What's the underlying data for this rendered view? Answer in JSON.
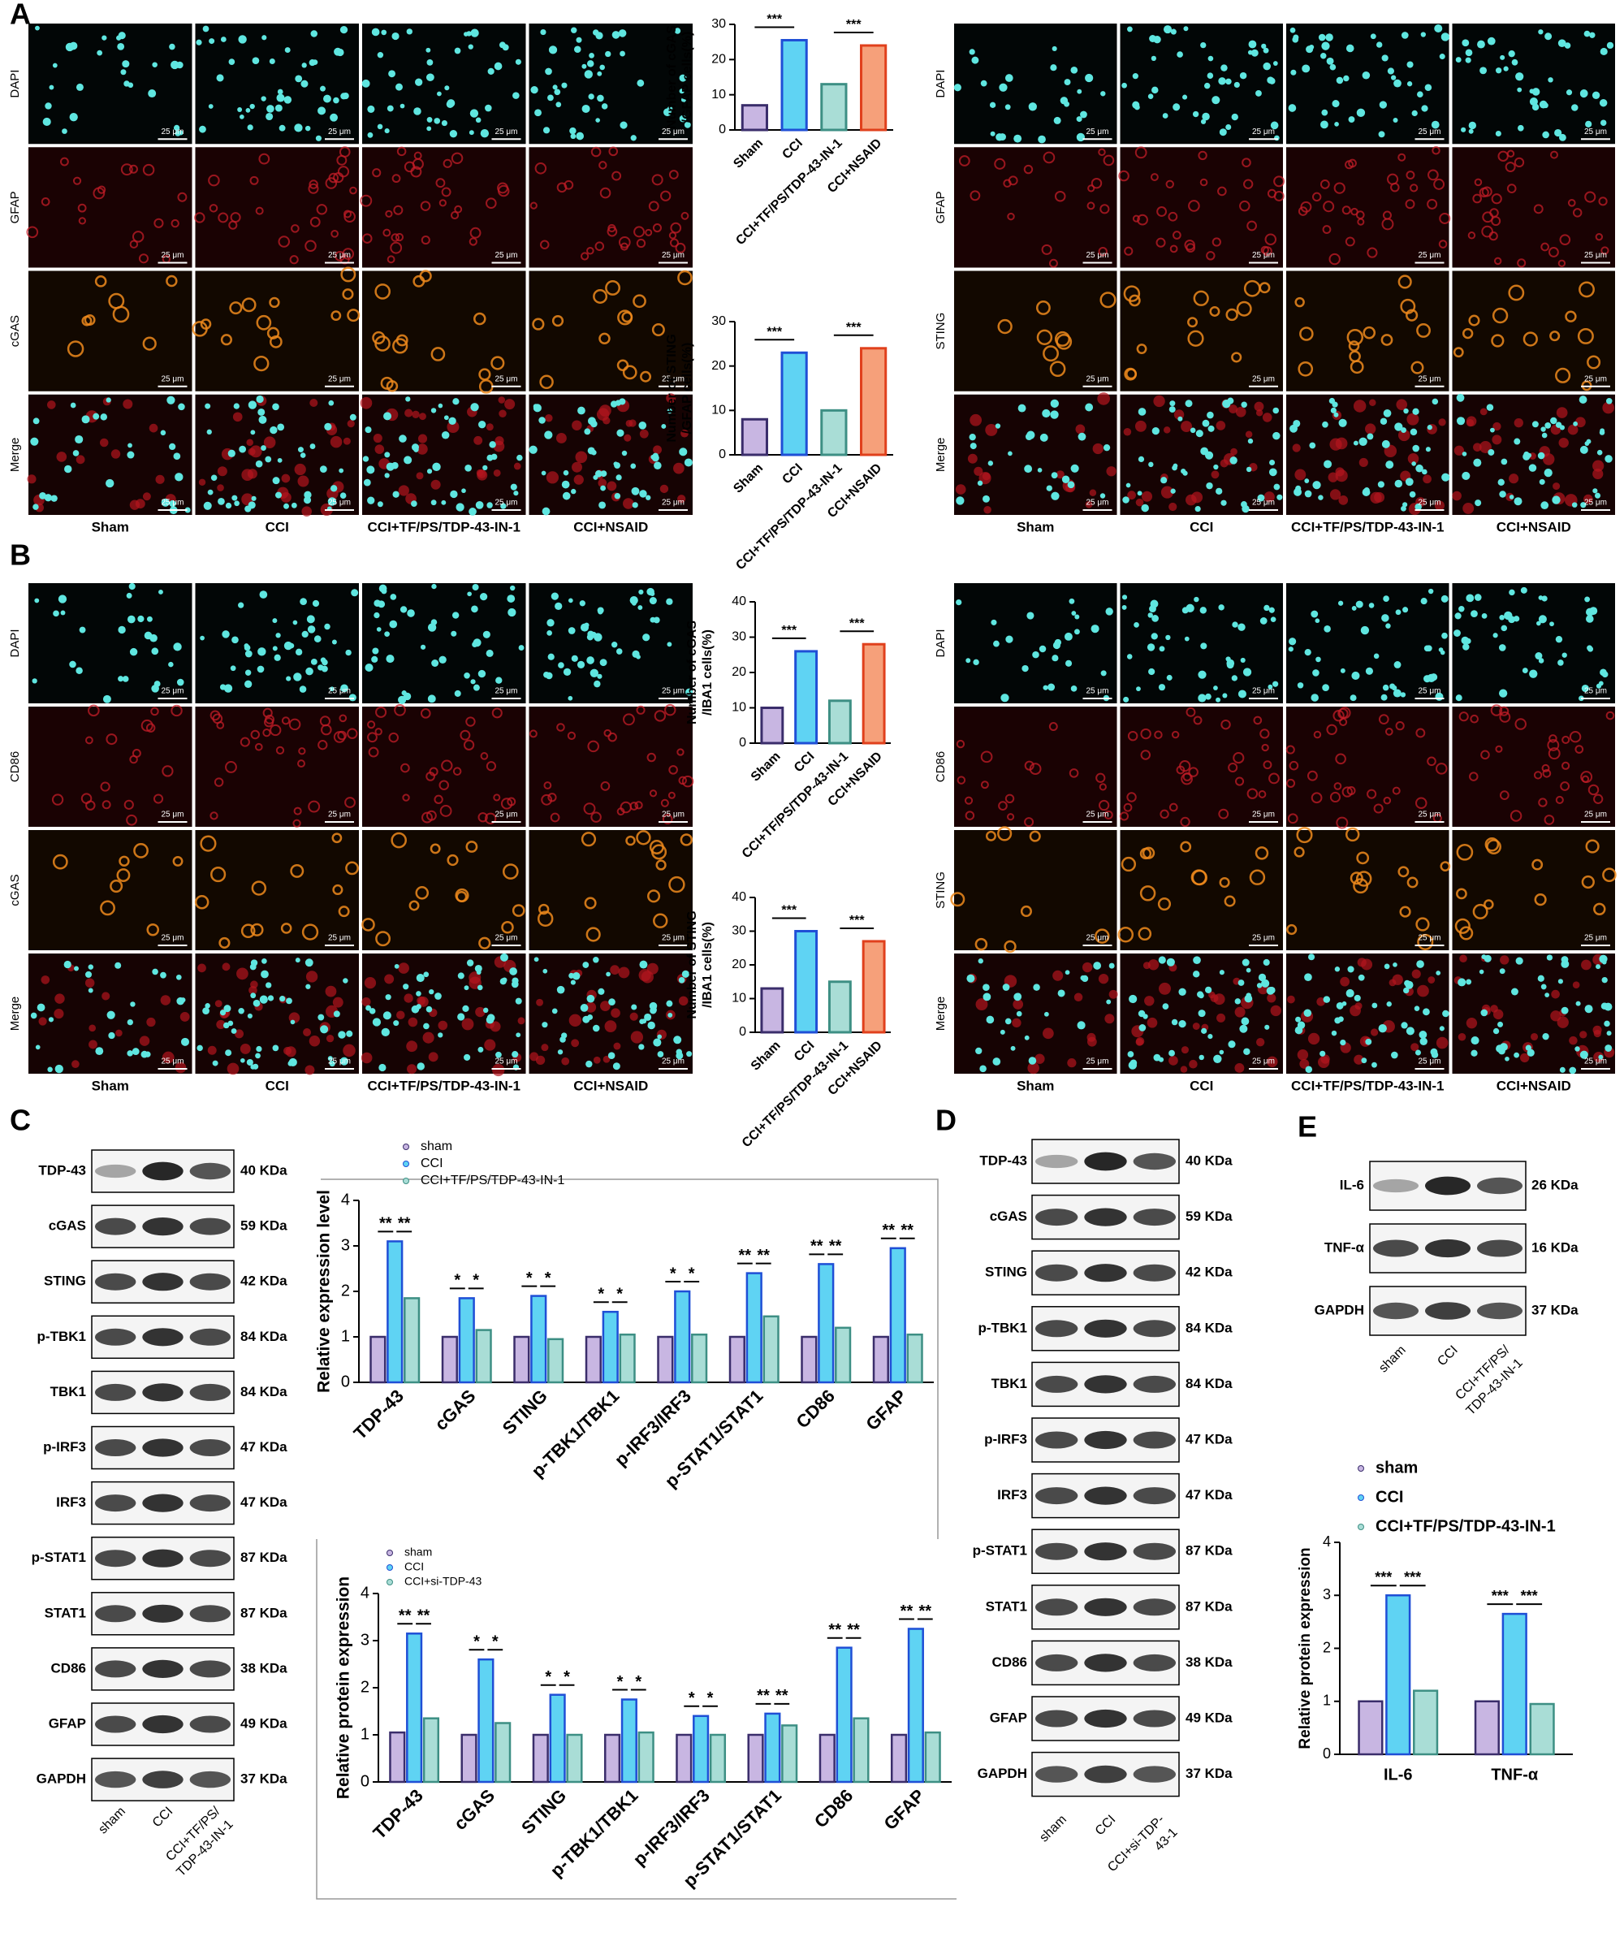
{
  "panel_letters": [
    "A",
    "B",
    "C",
    "D",
    "E"
  ],
  "micrographs": {
    "scale_bar": "25 μm",
    "A_left": {
      "rows": [
        "DAPI",
        "GFAP",
        "cGAS",
        "Merge"
      ],
      "columns": [
        "Sham",
        "CCI",
        "CCI+TF/PS/TDP-43-IN-1",
        "CCI+NSAID"
      ]
    },
    "A_right": {
      "rows": [
        "DAPI",
        "GFAP",
        "STING",
        "Merge"
      ],
      "columns": [
        "Sham",
        "CCI",
        "CCI+TF/PS/TDP-43-IN-1",
        "CCI+NSAID"
      ]
    },
    "B_left": {
      "rows": [
        "DAPI",
        "CD86",
        "cGAS",
        "Merge"
      ],
      "columns": [
        "Sham",
        "CCI",
        "CCI+TF/PS/TDP-43-IN-1",
        "CCI+NSAID"
      ]
    },
    "B_right": {
      "rows": [
        "DAPI",
        "CD86",
        "STING",
        "Merge"
      ],
      "columns": [
        "Sham",
        "CCI",
        "CCI+TF/PS/TDP-43-IN-1",
        "CCI+NSAID"
      ]
    }
  },
  "blots": {
    "C": {
      "rows": [
        {
          "label": "TDP-43",
          "size": "40 KDa"
        },
        {
          "label": "cGAS",
          "size": "59 KDa"
        },
        {
          "label": "STING",
          "size": "42 KDa"
        },
        {
          "label": "p-TBK1",
          "size": "84 KDa"
        },
        {
          "label": "TBK1",
          "size": "84 KDa"
        },
        {
          "label": "p-IRF3",
          "size": "47 KDa"
        },
        {
          "label": "IRF3",
          "size": "47 KDa"
        },
        {
          "label": "p-STAT1",
          "size": "87 KDa"
        },
        {
          "label": "STAT1",
          "size": "87 KDa"
        },
        {
          "label": "CD86",
          "size": "38 KDa"
        },
        {
          "label": "GFAP",
          "size": "49 KDa"
        },
        {
          "label": "GAPDH",
          "size": "37 KDa"
        }
      ],
      "lanes": [
        [
          "sham"
        ],
        [
          "CCI"
        ],
        [
          "CCI+TF/PS/",
          "TDP-43-IN-1"
        ]
      ]
    },
    "D": {
      "rows": [
        {
          "label": "TDP-43",
          "size": "40 KDa"
        },
        {
          "label": "cGAS",
          "size": "59 KDa"
        },
        {
          "label": "STING",
          "size": "42 KDa"
        },
        {
          "label": "p-TBK1",
          "size": "84 KDa"
        },
        {
          "label": "TBK1",
          "size": "84 KDa"
        },
        {
          "label": "p-IRF3",
          "size": "47 KDa"
        },
        {
          "label": "IRF3",
          "size": "47 KDa"
        },
        {
          "label": "p-STAT1",
          "size": "87 KDa"
        },
        {
          "label": "STAT1",
          "size": "87 KDa"
        },
        {
          "label": "CD86",
          "size": "38 KDa"
        },
        {
          "label": "GFAP",
          "size": "49 KDa"
        },
        {
          "label": "GAPDH",
          "size": "37 KDa"
        }
      ],
      "lanes": [
        [
          "sham"
        ],
        [
          "CCI"
        ],
        [
          "CCI+si-TDP-",
          "43-1"
        ]
      ]
    },
    "E": {
      "rows": [
        {
          "label": "IL-6",
          "size": "26 KDa"
        },
        {
          "label": "TNF-α",
          "size": "16 KDa"
        },
        {
          "label": "GAPDH",
          "size": "37 KDa"
        }
      ],
      "lanes": [
        [
          "sham"
        ],
        [
          "CCI"
        ],
        [
          "CCI+TF/PS/",
          "TDP-43-IN-1"
        ]
      ]
    }
  },
  "chart_data": [
    {
      "type": "bar",
      "ylabel": [
        "Number of cGAS",
        "/GFAP cells(%)"
      ],
      "categories": [
        "Sham",
        "CCI",
        "CCI+TF/PS/TDP-43-IN-1",
        "CCI+NSAID"
      ],
      "values": [
        7,
        25.5,
        13,
        24
      ],
      "colors": [
        "#c8b6e2",
        "#5fd3f3",
        "#a9ddd6",
        "#f6a07a"
      ],
      "edge_colors": [
        "#3a2d6b",
        "#1f4fd6",
        "#3d8f84",
        "#e0401c"
      ],
      "ylim": [
        0,
        30
      ],
      "yticks": [
        0,
        10,
        20,
        30
      ],
      "significance": [
        "***",
        "***"
      ]
    },
    {
      "type": "bar",
      "ylabel": [
        "Number of STING",
        "/GFAP cells(%)"
      ],
      "categories": [
        "Sham",
        "CCI",
        "CCI+TF/PS/TDP-43-IN-1",
        "CCI+NSAID"
      ],
      "values": [
        8,
        23,
        10,
        24
      ],
      "colors": [
        "#c8b6e2",
        "#5fd3f3",
        "#a9ddd6",
        "#f6a07a"
      ],
      "edge_colors": [
        "#3a2d6b",
        "#1f4fd6",
        "#3d8f84",
        "#e0401c"
      ],
      "ylim": [
        0,
        30
      ],
      "yticks": [
        0,
        10,
        20,
        30
      ],
      "significance": [
        "***",
        "***"
      ]
    },
    {
      "type": "bar",
      "ylabel": [
        "Number of cGAS",
        "/IBA1 cells(%)"
      ],
      "categories": [
        "Sham",
        "CCI",
        "CCI+TF/PS/TDP-43-IN-1",
        "CCI+NSAID"
      ],
      "values": [
        10,
        26,
        12,
        28
      ],
      "colors": [
        "#c8b6e2",
        "#5fd3f3",
        "#a9ddd6",
        "#f6a07a"
      ],
      "edge_colors": [
        "#3a2d6b",
        "#1f4fd6",
        "#3d8f84",
        "#e0401c"
      ],
      "ylim": [
        0,
        40
      ],
      "yticks": [
        0,
        10,
        20,
        30,
        40
      ],
      "significance": [
        "***",
        "***"
      ]
    },
    {
      "type": "bar",
      "ylabel": [
        "Number of STING",
        "/IBA1 cells(%)"
      ],
      "categories": [
        "Sham",
        "CCI",
        "CCI+TF/PS/TDP-43-IN-1",
        "CCI+NSAID"
      ],
      "values": [
        13,
        30,
        15,
        27
      ],
      "colors": [
        "#c8b6e2",
        "#5fd3f3",
        "#a9ddd6",
        "#f6a07a"
      ],
      "edge_colors": [
        "#3a2d6b",
        "#1f4fd6",
        "#3d8f84",
        "#e0401c"
      ],
      "ylim": [
        0,
        40
      ],
      "yticks": [
        0,
        10,
        20,
        30,
        40
      ],
      "significance": [
        "***",
        "***"
      ]
    },
    {
      "type": "grouped_bar",
      "ylabel": "Relative expression level",
      "categories": [
        "TDP-43",
        "cGAS",
        "STING",
        "p-TBK1/TBK1",
        "p-IRF3/IRF3",
        "p-STAT1/STAT1",
        "CD86",
        "GFAP"
      ],
      "series": [
        {
          "name": "sham",
          "color": "#c8b6e2",
          "edge_color": "#3a2d6b",
          "values": [
            1,
            1,
            1,
            1,
            1,
            1,
            1,
            1
          ]
        },
        {
          "name": "CCI",
          "color": "#5fd3f3",
          "edge_color": "#1f4fd6",
          "values": [
            3.1,
            1.85,
            1.9,
            1.55,
            2.0,
            2.4,
            2.6,
            2.95
          ]
        },
        {
          "name": "CCI+TF/PS/TDP-43-IN-1",
          "color": "#a9ddd6",
          "edge_color": "#3d8f84",
          "values": [
            1.85,
            1.15,
            0.95,
            1.05,
            1.05,
            1.45,
            1.2,
            1.05
          ]
        }
      ],
      "ylim": [
        0,
        4
      ],
      "yticks": [
        0,
        1,
        2,
        3,
        4
      ],
      "significance": [
        [
          "**",
          "**"
        ],
        [
          "*",
          "*"
        ],
        [
          "*",
          "*"
        ],
        [
          "*",
          "*"
        ],
        [
          "*",
          "*"
        ],
        [
          "**",
          "**"
        ],
        [
          "**",
          "**"
        ],
        [
          "**",
          "**"
        ]
      ]
    },
    {
      "type": "grouped_bar",
      "ylabel": "Relative protein expression",
      "categories": [
        "TDP-43",
        "cGAS",
        "STING",
        "p-TBK1/TBK1",
        "p-IRF3/IRF3",
        "p-STAT1/STAT1",
        "CD86",
        "GFAP"
      ],
      "series": [
        {
          "name": "sham",
          "color": "#c8b6e2",
          "edge_color": "#3a2d6b",
          "values": [
            1.05,
            1.0,
            1.0,
            1.0,
            1.0,
            1.0,
            1.0,
            1.0
          ]
        },
        {
          "name": "CCI",
          "color": "#5fd3f3",
          "edge_color": "#1f4fd6",
          "values": [
            3.15,
            2.6,
            1.85,
            1.75,
            1.4,
            1.45,
            2.85,
            3.25
          ]
        },
        {
          "name": "CCI+si-TDP-43",
          "color": "#a9ddd6",
          "edge_color": "#3d8f84",
          "values": [
            1.35,
            1.25,
            1.0,
            1.05,
            1.0,
            1.2,
            1.35,
            1.05
          ]
        }
      ],
      "ylim": [
        0,
        4
      ],
      "yticks": [
        0,
        1,
        2,
        3,
        4
      ],
      "significance": [
        [
          "**",
          "**"
        ],
        [
          "*",
          "*"
        ],
        [
          "*",
          "*"
        ],
        [
          "*",
          "*"
        ],
        [
          "*",
          "*"
        ],
        [
          "**",
          "**"
        ],
        [
          "**",
          "**"
        ],
        [
          "**",
          "**"
        ]
      ]
    },
    {
      "type": "grouped_bar",
      "ylabel": "Relative protein expression",
      "categories": [
        "IL-6",
        "TNF-α"
      ],
      "series": [
        {
          "name": "sham",
          "color": "#c8b6e2",
          "edge_color": "#3a2d6b",
          "values": [
            1.0,
            1.0
          ]
        },
        {
          "name": "CCI",
          "color": "#5fd3f3",
          "edge_color": "#1f4fd6",
          "values": [
            3.0,
            2.65
          ]
        },
        {
          "name": "CCI+TF/PS/TDP-43-IN-1",
          "color": "#a9ddd6",
          "edge_color": "#3d8f84",
          "values": [
            1.2,
            0.95
          ]
        }
      ],
      "ylim": [
        0,
        4
      ],
      "yticks": [
        0,
        1,
        2,
        3,
        4
      ],
      "significance": [
        [
          "***",
          "***"
        ],
        [
          "***",
          "***"
        ]
      ]
    }
  ]
}
